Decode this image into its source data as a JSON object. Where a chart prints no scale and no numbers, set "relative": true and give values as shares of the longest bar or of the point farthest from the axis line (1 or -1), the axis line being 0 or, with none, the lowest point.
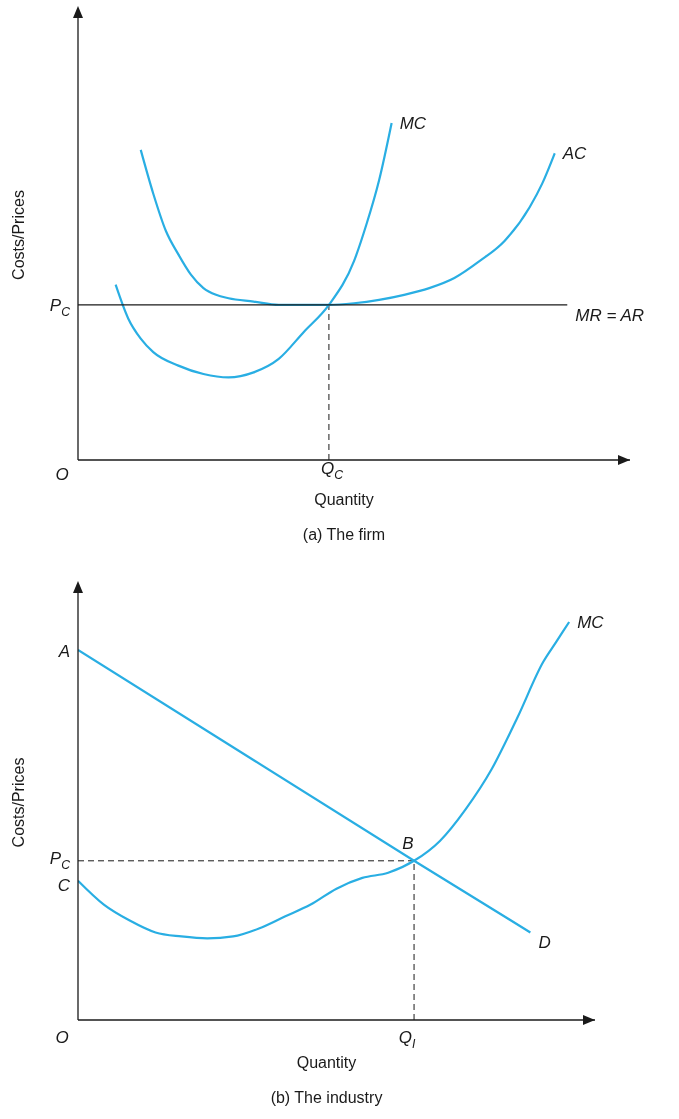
{
  "chart_data": [
    {
      "type": "line",
      "title": "(a) The firm",
      "xlabel": "Quantity",
      "ylabel": "Costs/Prices",
      "relative": true,
      "categories": [
        null,
        null,
        null,
        null,
        null,
        null,
        null,
        null,
        null,
        null,
        null,
        null,
        null,
        null,
        null,
        null,
        null,
        null,
        null,
        null,
        null,
        null,
        null,
        null,
        null,
        null,
        null,
        null,
        null,
        null,
        null,
        null,
        null,
        null,
        null,
        null,
        null,
        null,
        null,
        null,
        null,
        null,
        null,
        null,
        null
      ],
      "series": [
        {
          "name": "MC",
          "color": "#29aee3",
          "values": [
            null,
            null,
            null,
            0.52,
            0.42,
            0.36,
            0.32,
            null,
            0.28,
            null,
            0.255,
            null,
            0.245,
            null,
            0.26,
            null,
            0.3,
            null,
            0.38,
            null,
            0.46,
            null,
            0.59,
            0.7,
            0.83,
            1.0,
            null,
            null,
            null,
            null,
            null,
            null,
            null,
            null,
            null,
            null,
            null,
            null,
            null,
            null,
            null,
            null,
            null,
            null,
            null
          ]
        },
        {
          "name": "AC",
          "color": "#29aee3",
          "values": [
            null,
            null,
            null,
            null,
            null,
            0.92,
            0.79,
            0.68,
            0.61,
            0.55,
            0.51,
            0.49,
            0.48,
            null,
            0.47,
            null,
            0.46,
            null,
            0.46,
            null,
            0.46,
            null,
            0.465,
            null,
            0.475,
            null,
            0.49,
            null,
            0.51,
            null,
            0.54,
            null,
            0.59,
            null,
            0.65,
            null,
            0.75,
            0.82,
            0.91,
            null,
            null,
            null,
            null,
            null,
            null
          ]
        },
        {
          "name": "MR = AR",
          "color": "#1a1a1a",
          "values": [
            0.46,
            null,
            null,
            null,
            null,
            null,
            null,
            null,
            null,
            null,
            null,
            null,
            null,
            null,
            null,
            null,
            null,
            null,
            null,
            null,
            null,
            null,
            null,
            null,
            null,
            null,
            null,
            null,
            null,
            null,
            null,
            null,
            null,
            null,
            null,
            null,
            null,
            null,
            null,
            0.46,
            null,
            null,
            null,
            null,
            null
          ]
        }
      ],
      "annotations": [
        "O",
        "P$_{C}$",
        "Q$_{C}$"
      ]
    },
    {
      "type": "line",
      "title": "(b) The industry",
      "xlabel": "Quantity",
      "ylabel": "Costs/Prices",
      "relative": true,
      "categories": [
        null,
        null,
        null,
        null,
        null,
        null,
        null,
        null,
        null,
        null,
        null,
        null,
        null,
        null,
        null,
        null,
        null,
        null,
        null,
        null,
        null,
        null,
        null,
        null,
        null,
        null,
        null,
        null,
        null,
        null,
        null,
        null,
        null,
        null,
        null,
        null,
        null,
        null,
        null,
        null,
        null
      ],
      "series": [
        {
          "name": "D",
          "color": "#29aee3",
          "values": [
            0.93,
            null,
            null,
            null,
            null,
            null,
            null,
            null,
            null,
            null,
            null,
            null,
            null,
            null,
            null,
            null,
            null,
            null,
            null,
            null,
            null,
            null,
            null,
            null,
            null,
            null,
            0.4,
            null,
            null,
            null,
            null,
            null,
            null,
            null,
            null,
            0.22,
            null,
            null,
            null,
            null,
            null
          ]
        },
        {
          "name": "MC",
          "color": "#29aee3",
          "values": [
            0.35,
            null,
            0.29,
            null,
            0.25,
            null,
            0.22,
            null,
            0.21,
            null,
            0.205,
            null,
            0.21,
            null,
            0.23,
            null,
            0.26,
            null,
            0.29,
            null,
            0.33,
            null,
            0.357,
            null,
            0.37,
            null,
            0.4,
            null,
            0.45,
            null,
            0.53,
            null,
            0.63,
            null,
            0.76,
            null,
            0.9,
            0.95,
            1.0,
            null,
            null
          ]
        }
      ],
      "annotations": [
        "O",
        "A",
        "C",
        "P$_{C}$",
        "B",
        "Q$_{I}$"
      ]
    }
  ]
}
